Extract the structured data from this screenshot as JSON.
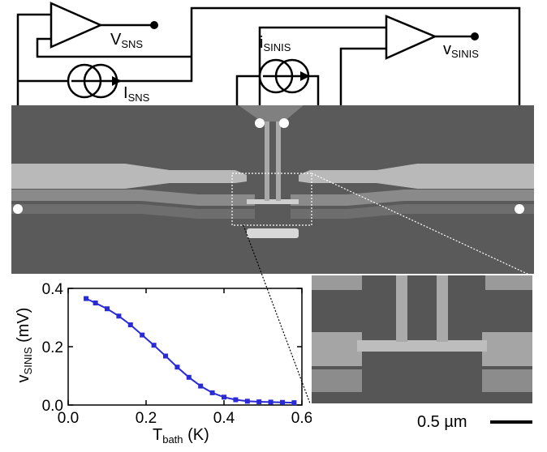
{
  "labels": {
    "v_sns_main": "V",
    "v_sns_sub": "SNS",
    "i_sns_main": "I",
    "i_sns_sub": "SNS",
    "i_sinis_main": "i",
    "i_sinis_sub": "SINIS",
    "v_sinis_main": "v",
    "v_sinis_sub": "SINIS"
  },
  "scale_bar": {
    "text": "0.5 µm"
  },
  "chart_data": {
    "type": "line",
    "title": "",
    "xlabel_main": "T",
    "xlabel_sub": "bath",
    "xlabel_unit": "(K)",
    "ylabel_main": "v",
    "ylabel_sub": "SINIS",
    "ylabel_unit": "(mV)",
    "xlim": [
      0.0,
      0.6
    ],
    "ylim": [
      0.0,
      0.4
    ],
    "xticks": [
      "0.0",
      "0.2",
      "0.4",
      "0.6"
    ],
    "yticks": [
      "0.0",
      "0.2",
      "0.4"
    ],
    "series": [
      {
        "color": "#2a2ad6",
        "x": [
          0.046,
          0.07,
          0.1,
          0.13,
          0.16,
          0.19,
          0.22,
          0.25,
          0.28,
          0.31,
          0.34,
          0.37,
          0.4,
          0.43,
          0.46,
          0.49,
          0.52,
          0.55,
          0.58
        ],
        "y": [
          0.365,
          0.35,
          0.33,
          0.305,
          0.275,
          0.24,
          0.205,
          0.168,
          0.13,
          0.095,
          0.065,
          0.042,
          0.027,
          0.018,
          0.013,
          0.011,
          0.01,
          0.009,
          0.008
        ]
      }
    ]
  }
}
